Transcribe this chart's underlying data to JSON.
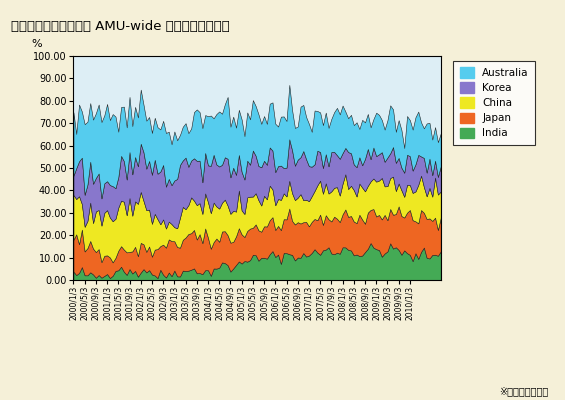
{
  "title": "図表４　加重平均した AMU-wide 乖離指標の寄与度",
  "ylabel": "%",
  "ylim": [
    0,
    100
  ],
  "ytick_labels": [
    "0.00",
    "10.00",
    "20.00",
    "30.00",
    "40.00",
    "50.00",
    "60.00",
    "70.00",
    "80.00",
    "90.00",
    "100.00"
  ],
  "legend_labels": [
    "Australia",
    "Korea",
    "China",
    "Japan",
    "India"
  ],
  "colors": {
    "Australia": "#55CCEE",
    "Korea": "#8877CC",
    "China": "#EEE822",
    "Japan": "#EE6622",
    "India": "#44AA55"
  },
  "background_color": "#F5F0D8",
  "plot_bg_color": "#DDEEF5",
  "note": "※著者による算出",
  "xtick_dates": [
    "2000/1/3",
    "2000/5/3",
    "2000/9/3",
    "2001/1/3",
    "2001/5/3",
    "2001/9/3",
    "2002/1/3",
    "2002/5/3",
    "2002/9/3",
    "2003/1/3",
    "2003/5/3",
    "2003/9/3",
    "2004/1/3",
    "2004/5/3",
    "2004/9/3",
    "2005/1/3",
    "2005/5/3",
    "2005/9/3",
    "2006/1/3",
    "2006/5/3",
    "2006/9/3",
    "2007/1/3",
    "2007/5/3",
    "2007/9/3",
    "2008/1/3",
    "2008/5/3",
    "2008/9/3",
    "2009/1/3",
    "2009/5/3",
    "2009/9/3",
    "2010/1/3"
  ],
  "india_base": [
    4,
    3,
    3,
    5,
    3,
    3,
    2,
    2,
    2,
    2,
    2,
    3,
    3,
    4,
    5,
    6,
    7,
    7,
    6,
    5,
    4,
    4,
    5,
    4,
    5,
    6,
    6,
    5,
    4,
    3,
    2,
    3,
    3,
    3,
    3,
    4,
    5,
    5,
    4,
    5,
    4,
    5,
    6,
    7,
    6,
    5,
    4,
    4,
    5,
    5,
    6,
    7,
    8,
    9,
    8,
    7,
    6,
    7,
    8,
    9,
    10,
    11,
    12,
    13,
    13,
    12,
    11,
    11,
    12,
    13,
    14,
    14,
    13,
    12,
    13,
    14,
    15,
    15,
    14,
    14,
    13,
    12,
    13,
    14,
    15,
    16,
    16,
    15,
    15,
    16,
    17,
    17,
    16,
    15,
    16,
    17,
    18,
    18,
    17,
    17,
    16,
    15,
    14,
    15,
    16,
    17,
    18,
    18,
    17,
    17,
    16,
    15,
    16,
    17,
    18,
    18,
    17,
    16,
    15,
    14,
    13,
    12,
    13,
    14,
    15,
    15,
    14,
    13,
    14,
    15,
    16,
    16
  ],
  "japan_base": [
    20,
    22,
    18,
    18,
    15,
    16,
    16,
    17,
    14,
    12,
    12,
    11,
    10,
    10,
    10,
    10,
    10,
    11,
    12,
    12,
    11,
    12,
    13,
    13,
    13,
    13,
    14,
    12,
    12,
    13,
    14,
    15,
    15,
    16,
    17,
    16,
    17,
    18,
    18,
    19,
    19,
    20,
    20,
    20,
    19,
    19,
    18,
    18,
    17,
    17,
    17,
    16,
    15,
    16,
    17,
    17,
    18,
    18,
    17,
    17,
    16,
    16,
    17,
    17,
    17,
    17,
    17,
    17,
    17,
    17,
    17,
    17,
    18,
    18,
    18,
    18,
    18,
    18,
    18,
    18,
    18,
    18,
    18,
    18,
    18,
    18,
    18,
    18,
    18,
    18,
    18,
    19,
    19,
    19,
    19,
    20,
    20,
    20,
    20,
    19,
    19,
    19,
    19,
    19,
    20,
    20,
    20,
    20,
    20,
    20,
    20,
    20,
    20,
    20,
    20,
    20,
    21,
    21,
    21,
    21,
    21,
    21,
    21,
    21,
    21,
    21,
    21,
    21,
    21,
    21,
    21,
    21
  ],
  "china_base": [
    26,
    23,
    23,
    18,
    15,
    15,
    18,
    18,
    20,
    22,
    23,
    23,
    25,
    24,
    23,
    23,
    24,
    24,
    23,
    24,
    25,
    25,
    26,
    28,
    28,
    26,
    24,
    22,
    20,
    18,
    16,
    14,
    12,
    10,
    8,
    8,
    10,
    12,
    15,
    17,
    16,
    16,
    17,
    18,
    18,
    18,
    17,
    17,
    18,
    18,
    19,
    18,
    17,
    17,
    17,
    17,
    16,
    16,
    16,
    16,
    16,
    16,
    16,
    16,
    16,
    16,
    17,
    17,
    17,
    17,
    17,
    16,
    16,
    16,
    16,
    16,
    15,
    15,
    15,
    15,
    15,
    16,
    16,
    16,
    16,
    15,
    15,
    16,
    17,
    18,
    18,
    17,
    17,
    17,
    17,
    17,
    16,
    16,
    16,
    16,
    16,
    16,
    17,
    18,
    18,
    17,
    16,
    16,
    16,
    17,
    18,
    18,
    17,
    17,
    16,
    15,
    15,
    16,
    17,
    17,
    16,
    15,
    16,
    17,
    17,
    16,
    15,
    16,
    17,
    18,
    17,
    16
  ],
  "korea_base": [
    15,
    14,
    20,
    23,
    22,
    22,
    23,
    22,
    20,
    19,
    18,
    17,
    16,
    17,
    18,
    20,
    21,
    22,
    22,
    22,
    22,
    23,
    22,
    21,
    22,
    23,
    24,
    25,
    26,
    27,
    28,
    28,
    28,
    28,
    27,
    27,
    27,
    26,
    26,
    26,
    25,
    25,
    25,
    24,
    24,
    24,
    23,
    23,
    24,
    25,
    26,
    26,
    25,
    24,
    24,
    24,
    23,
    23,
    22,
    22,
    22,
    22,
    22,
    21,
    21,
    21,
    21,
    21,
    20,
    20,
    20,
    20,
    20,
    20,
    20,
    20,
    20,
    20,
    20,
    20,
    20,
    20,
    20,
    20,
    20,
    19,
    19,
    19,
    18,
    18,
    18,
    18,
    18,
    18,
    18,
    17,
    17,
    17,
    17,
    17,
    17,
    17,
    17,
    16,
    16,
    16,
    16,
    16,
    16,
    16,
    16,
    16,
    16,
    16,
    16,
    16,
    15,
    15,
    15,
    15,
    15,
    15,
    15,
    15,
    15,
    15,
    15,
    15,
    14,
    14,
    14,
    14
  ],
  "australia_base": [
    35,
    22,
    30,
    31,
    40,
    39,
    35,
    36,
    39,
    40,
    40,
    40,
    41,
    40,
    39,
    36,
    33,
    30,
    29,
    30,
    30,
    29,
    28,
    28,
    27,
    26,
    26,
    26,
    25,
    25,
    25,
    25,
    24,
    24,
    24,
    24,
    24,
    23,
    23,
    22,
    25,
    20,
    18,
    21,
    28,
    28,
    28,
    28,
    27,
    26,
    25,
    25,
    30,
    30,
    28,
    28,
    28,
    28,
    28,
    28,
    27,
    27,
    27,
    27,
    27,
    27,
    26,
    26,
    26,
    26,
    26,
    26,
    25,
    25,
    25,
    25,
    25,
    25,
    25,
    25,
    24,
    24,
    24,
    24,
    23,
    23,
    23,
    22,
    22,
    22,
    22,
    21,
    21,
    21,
    21,
    21,
    22,
    22,
    22,
    22,
    22,
    22,
    21,
    21,
    21,
    21,
    21,
    21,
    22,
    22,
    22,
    22,
    22,
    22,
    22,
    22,
    22,
    22,
    22,
    22,
    21,
    21,
    21,
    21,
    20,
    20,
    20,
    20,
    20,
    19,
    19,
    19
  ]
}
